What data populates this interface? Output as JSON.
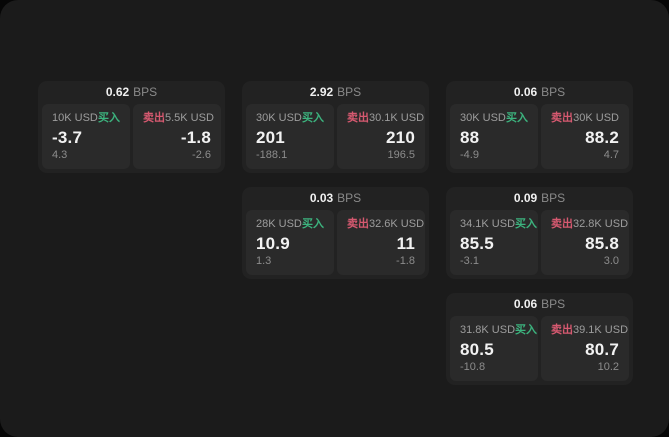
{
  "labels": {
    "bps_unit": "BPS",
    "buy": "买入",
    "sell": "卖出"
  },
  "colors": {
    "buy": "#3cb37e",
    "sell": "#d65970",
    "page_bg": "#1b1b1b",
    "card_bg": "#222222",
    "panel_bg": "#2a2a2a",
    "primary_text": "#f2f2f2",
    "muted_text": "#9d9d9d"
  },
  "cards": [
    {
      "bps": "0.62",
      "col": 1,
      "row": 1,
      "buy": {
        "size": "10K USD",
        "price": "-3.7",
        "delta": "4.3"
      },
      "sell": {
        "size": "5.5K USD",
        "price": "-1.8",
        "delta": "-2.6"
      }
    },
    {
      "bps": "2.92",
      "col": 2,
      "row": 1,
      "buy": {
        "size": "30K USD",
        "price": "201",
        "delta": "-188.1"
      },
      "sell": {
        "size": "30.1K USD",
        "price": "210",
        "delta": "196.5"
      }
    },
    {
      "bps": "0.06",
      "col": 3,
      "row": 1,
      "buy": {
        "size": "30K USD",
        "price": "88",
        "delta": "-4.9"
      },
      "sell": {
        "size": "30K USD",
        "price": "88.2",
        "delta": "4.7"
      }
    },
    {
      "bps": "0.03",
      "col": 2,
      "row": 2,
      "buy": {
        "size": "28K USD",
        "price": "10.9",
        "delta": "1.3"
      },
      "sell": {
        "size": "32.6K USD",
        "price": "11",
        "delta": "-1.8"
      }
    },
    {
      "bps": "0.09",
      "col": 3,
      "row": 2,
      "buy": {
        "size": "34.1K USD",
        "price": "85.5",
        "delta": "-3.1"
      },
      "sell": {
        "size": "32.8K USD",
        "price": "85.8",
        "delta": "3.0"
      }
    },
    {
      "bps": "0.06",
      "col": 3,
      "row": 3,
      "buy": {
        "size": "31.8K USD",
        "price": "80.5",
        "delta": "-10.8"
      },
      "sell": {
        "size": "39.1K USD",
        "price": "80.7",
        "delta": "10.2"
      }
    }
  ]
}
